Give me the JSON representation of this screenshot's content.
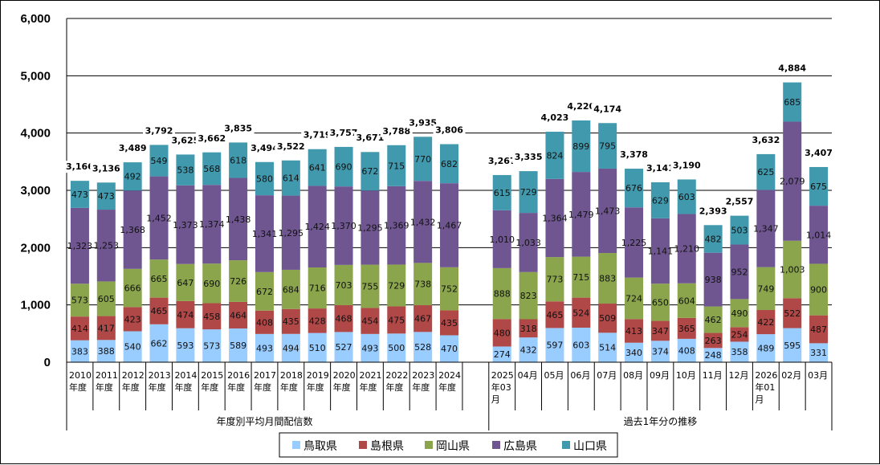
{
  "chart_data": {
    "type": "bar",
    "stacked": true,
    "title": "",
    "xlabel": "",
    "ylabel": "",
    "ylim": [
      0,
      6000
    ],
    "yticks": [
      "0",
      "1,000",
      "2,000",
      "3,000",
      "4,000",
      "5,000",
      "6,000"
    ],
    "grid": true,
    "legend_position": "bottom",
    "groups": [
      {
        "label": "年度別平均月間配信数",
        "categories": [
          [
            "2010",
            "年度"
          ],
          [
            "2011",
            "年度"
          ],
          [
            "2012",
            "年度"
          ],
          [
            "2013",
            "年度"
          ],
          [
            "2014",
            "年度"
          ],
          [
            "2015",
            "年度"
          ],
          [
            "2016",
            "年度"
          ],
          [
            "2017",
            "年度"
          ],
          [
            "2018",
            "年度"
          ],
          [
            "2019",
            "年度"
          ],
          [
            "2020",
            "年度"
          ],
          [
            "2021",
            "年度"
          ],
          [
            "2022",
            "年度"
          ],
          [
            "2023",
            "年度"
          ],
          [
            "2024",
            "年度"
          ]
        ],
        "series": [
          {
            "name": "鳥取県",
            "values": [
              383,
              388,
              540,
              662,
              593,
              573,
              589,
              493,
              494,
              510,
              527,
              493,
              500,
              528,
              470
            ]
          },
          {
            "name": "島根県",
            "values": [
              414,
              417,
              423,
              465,
              474,
              458,
              464,
              408,
              435,
              428,
              468,
              454,
              475,
              467,
              435
            ]
          },
          {
            "name": "岡山県",
            "values": [
              573,
              605,
              666,
              665,
              647,
              690,
              726,
              672,
              684,
              716,
              703,
              755,
              729,
              738,
              752
            ]
          },
          {
            "name": "広島県",
            "values": [
              1323,
              1253,
              1368,
              1452,
              1373,
              1374,
              1438,
              1341,
              1295,
              1424,
              1370,
              1295,
              1369,
              1432,
              1467
            ]
          },
          {
            "name": "山口県",
            "values": [
              473,
              473,
              492,
              549,
              538,
              568,
              618,
              580,
              614,
              641,
              690,
              672,
              715,
              770,
              682
            ]
          }
        ],
        "totals": [
          3166,
          3136,
          3489,
          3792,
          3625,
          3662,
          3835,
          3494,
          3522,
          3719,
          3757,
          3671,
          3788,
          3935,
          3806
        ]
      },
      {
        "label": "過去1年分の推移",
        "categories": [
          [
            "2025",
            "年03",
            "月"
          ],
          [
            "04月"
          ],
          [
            "05月"
          ],
          [
            "06月"
          ],
          [
            "07月"
          ],
          [
            "08月"
          ],
          [
            "09月"
          ],
          [
            "10月"
          ],
          [
            "11月"
          ],
          [
            "12月"
          ],
          [
            "2026",
            "年01",
            "月"
          ],
          [
            "02月"
          ],
          [
            "03月"
          ]
        ],
        "series": [
          {
            "name": "鳥取県",
            "values": [
              274,
              432,
              597,
              603,
              514,
              340,
              374,
              408,
              248,
              358,
              489,
              595,
              331
            ]
          },
          {
            "name": "島根県",
            "values": [
              480,
              318,
              465,
              524,
              509,
              413,
              347,
              365,
              263,
              254,
              422,
              522,
              487
            ]
          },
          {
            "name": "岡山県",
            "values": [
              888,
              823,
              773,
              715,
              883,
              724,
              650,
              604,
              462,
              490,
              749,
              1003,
              900
            ]
          },
          {
            "name": "広島県",
            "values": [
              1010,
              1033,
              1364,
              1479,
              1473,
              1225,
              1141,
              1210,
              938,
              952,
              1347,
              2079,
              1014
            ]
          },
          {
            "name": "山口県",
            "values": [
              615,
              729,
              824,
              899,
              795,
              676,
              629,
              603,
              482,
              503,
              625,
              685,
              675
            ]
          }
        ],
        "totals": [
          3267,
          3335,
          4023,
          4220,
          4174,
          3378,
          3141,
          3190,
          2393,
          2557,
          3632,
          4884,
          3407
        ]
      }
    ],
    "legend": [
      {
        "name": "鳥取県",
        "color": "#99ccff"
      },
      {
        "name": "島根県",
        "color": "#b04848"
      },
      {
        "name": "岡山県",
        "color": "#8ba54c"
      },
      {
        "name": "広島県",
        "color": "#6f5690"
      },
      {
        "name": "山口県",
        "color": "#4199ae"
      }
    ]
  }
}
